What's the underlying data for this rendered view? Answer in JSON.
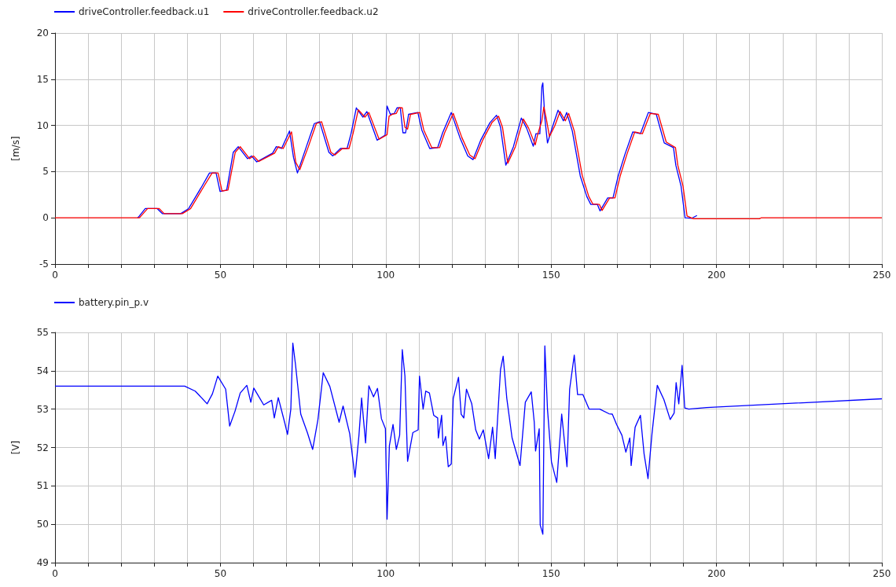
{
  "chart_data": [
    {
      "type": "line",
      "ylabel": "[m/s]",
      "xlim": [
        0,
        250
      ],
      "ylim": [
        -5,
        20
      ],
      "xticks": [
        0,
        {
          "value": 10,
          "label": null
        },
        {
          "value": 20,
          "label": null
        },
        {
          "value": 30,
          "label": null
        },
        {
          "value": 40,
          "label": null
        },
        50,
        {
          "value": 60,
          "label": null
        },
        {
          "value": 70,
          "label": null
        },
        {
          "value": 80,
          "label": null
        },
        {
          "value": 90,
          "label": null
        },
        100,
        {
          "value": 110,
          "label": null
        },
        {
          "value": 120,
          "label": null
        },
        {
          "value": 130,
          "label": null
        },
        {
          "value": 140,
          "label": null
        },
        150,
        {
          "value": 160,
          "label": null
        },
        {
          "value": 170,
          "label": null
        },
        {
          "value": 180,
          "label": null
        },
        {
          "value": 190,
          "label": null
        },
        200,
        {
          "value": 210,
          "label": null
        },
        {
          "value": 220,
          "label": null
        },
        {
          "value": 230,
          "label": null
        },
        {
          "value": 240,
          "label": null
        },
        250
      ],
      "yticks": [
        -5,
        0,
        5,
        10,
        15,
        20
      ],
      "grid": true,
      "legend": "top left",
      "marker": "none",
      "line_style": "solid",
      "series": [
        {
          "name": "driveController.feedback.u1",
          "color": "#0000ff",
          "x": [
            25,
            25.5,
            27.3,
            30.9,
            32.5,
            38,
            40.4,
            44.4,
            46.7,
            48.7,
            49.9,
            51.9,
            53.9,
            55.4,
            58.2,
            59.4,
            61,
            65.8,
            66.9,
            68.5,
            70.9,
            72.1,
            73.3,
            76,
            78.4,
            80,
            82.8,
            84,
            86.3,
            88.3,
            89.5,
            91.1,
            93.1,
            94.3,
            97.4,
            99.8,
            100.4,
            101.4,
            102.6,
            103.4,
            104.4,
            105.2,
            106,
            106.9,
            109.7,
            110.9,
            113.3,
            115.7,
            117.2,
            119.8,
            122.4,
            124.8,
            126.4,
            128.7,
            131.5,
            133.5,
            134.7,
            136.3,
            138.6,
            141,
            142.6,
            144.6,
            145.4,
            146.6,
            147.2,
            147.5,
            148.1,
            148.9,
            150.5,
            152.1,
            153.7,
            154.7,
            156.4,
            158.8,
            160.8,
            162,
            164,
            164.8,
            167.1,
            168.7,
            170.3,
            172.3,
            174.7,
            177,
            179.4,
            181.8,
            184.2,
            187,
            187.7,
            189.3,
            190.5,
            192.5,
            194.1
          ],
          "values": [
            0,
            0.2,
            1.0,
            1.0,
            0.45,
            0.45,
            1.0,
            3.4,
            4.85,
            4.85,
            2.85,
            3.0,
            7.1,
            7.7,
            6.4,
            6.7,
            6.05,
            7.0,
            7.7,
            7.5,
            9.4,
            6.55,
            4.85,
            7.7,
            10.2,
            10.4,
            7.1,
            6.7,
            7.5,
            7.5,
            9.1,
            11.9,
            10.9,
            11.5,
            8.4,
            8.95,
            12.1,
            11.2,
            11.3,
            11.9,
            11.9,
            9.2,
            9.2,
            11.2,
            11.4,
            9.5,
            7.5,
            7.6,
            9.2,
            11.4,
            8.7,
            6.7,
            6.3,
            8.4,
            10.3,
            11.1,
            9.8,
            5.7,
            7.7,
            10.8,
            9.7,
            7.75,
            9.1,
            9.1,
            14.2,
            14.6,
            10.8,
            8.1,
            9.95,
            11.65,
            10.5,
            11.4,
            9.4,
            4.55,
            2.3,
            1.45,
            1.45,
            0.75,
            2.15,
            2.15,
            4.55,
            6.85,
            9.3,
            9.1,
            11.4,
            11.2,
            8.1,
            7.6,
            5.7,
            3.4,
            0,
            -0.05,
            0.25
          ]
        },
        {
          "name": "driveController.feedback.u2",
          "color": "#ff0000",
          "x": [
            0,
            25.5,
            26,
            28,
            31.5,
            33,
            38.5,
            41,
            45,
            47.5,
            49.3,
            50.5,
            52.3,
            54.5,
            56,
            58.8,
            60,
            61.6,
            66.4,
            67.5,
            69,
            71.5,
            72.8,
            74,
            76.6,
            79,
            80.6,
            83.4,
            84.6,
            86.9,
            88.9,
            90.1,
            91.7,
            93.7,
            94.9,
            98,
            100.4,
            101,
            102,
            103.2,
            104,
            105,
            105.8,
            106.6,
            107.5,
            110.3,
            111.5,
            113.9,
            116.3,
            117.8,
            120.4,
            123,
            125.4,
            127,
            129.3,
            132.1,
            134.1,
            135.3,
            136.9,
            139.2,
            141.6,
            143.2,
            145.2,
            146,
            147.2,
            147.8,
            148.5,
            149.5,
            151.1,
            152.7,
            154.3,
            155.3,
            157,
            159.4,
            161.4,
            162.6,
            164.6,
            165.4,
            167.7,
            169.3,
            170.9,
            172.9,
            175.3,
            177.6,
            180,
            182.4,
            184.8,
            187.6,
            188.3,
            189.9,
            191.1,
            193,
            213,
            213.5,
            250
          ],
          "values": [
            0,
            0,
            0.2,
            1.0,
            1.0,
            0.45,
            0.45,
            1.0,
            3.4,
            4.85,
            4.85,
            2.9,
            3.0,
            7.1,
            7.7,
            6.4,
            6.7,
            6.1,
            7.0,
            7.7,
            7.5,
            9.3,
            6.0,
            5.2,
            7.7,
            10.2,
            10.4,
            7.1,
            6.8,
            7.5,
            7.5,
            9.1,
            11.7,
            10.9,
            11.4,
            8.5,
            9.0,
            11.0,
            11.2,
            11.3,
            11.9,
            11.9,
            9.8,
            9.6,
            11.2,
            11.4,
            9.5,
            7.6,
            7.6,
            9.2,
            11.3,
            8.7,
            6.8,
            6.4,
            8.4,
            10.3,
            11.0,
            9.8,
            5.9,
            7.7,
            10.7,
            9.7,
            7.9,
            9.1,
            10.5,
            12.0,
            10.8,
            8.8,
            9.95,
            11.5,
            10.5,
            11.3,
            9.4,
            4.6,
            2.3,
            1.5,
            1.45,
            0.8,
            2.15,
            2.15,
            4.55,
            6.85,
            9.3,
            9.1,
            11.3,
            11.2,
            8.2,
            7.6,
            5.7,
            3.4,
            0.2,
            -0.1,
            -0.1,
            0,
            0
          ]
        }
      ]
    },
    {
      "type": "line",
      "ylabel": "[V]",
      "xlim": [
        0,
        250
      ],
      "ylim": [
        49,
        55
      ],
      "xticks": [
        0,
        {
          "value": 10,
          "label": null
        },
        {
          "value": 20,
          "label": null
        },
        {
          "value": 30,
          "label": null
        },
        {
          "value": 40,
          "label": null
        },
        50,
        {
          "value": 60,
          "label": null
        },
        {
          "value": 70,
          "label": null
        },
        {
          "value": 80,
          "label": null
        },
        {
          "value": 90,
          "label": null
        },
        100,
        {
          "value": 110,
          "label": null
        },
        {
          "value": 120,
          "label": null
        },
        {
          "value": 130,
          "label": null
        },
        {
          "value": 140,
          "label": null
        },
        150,
        {
          "value": 160,
          "label": null
        },
        {
          "value": 170,
          "label": null
        },
        {
          "value": 180,
          "label": null
        },
        {
          "value": 190,
          "label": null
        },
        200,
        {
          "value": 210,
          "label": null
        },
        {
          "value": 220,
          "label": null
        },
        {
          "value": 230,
          "label": null
        },
        {
          "value": 240,
          "label": null
        },
        250
      ],
      "yticks": [
        49,
        50,
        51,
        52,
        53,
        54,
        55
      ],
      "grid": true,
      "legend": "top left",
      "marker": "none",
      "line_style": "solid",
      "series": [
        {
          "name": "battery.pin_p.v",
          "color": "#0000ff",
          "x": [
            0,
            39.2,
            42.4,
            46,
            47.6,
            49.2,
            51.6,
            52.8,
            54.4,
            56,
            58,
            59.2,
            60.1,
            63.1,
            65.5,
            66.3,
            67.5,
            69.5,
            70.3,
            71.3,
            71.9,
            72.7,
            74.3,
            76.3,
            77.9,
            79.5,
            81.1,
            83.1,
            85.9,
            87.1,
            89.1,
            90.7,
            91.9,
            92.7,
            93.9,
            94.9,
            96.3,
            97.5,
            98.7,
            99.9,
            100.4,
            101.1,
            102.2,
            103.2,
            104.2,
            105,
            105.8,
            106.6,
            108.2,
            109.8,
            110.2,
            111.3,
            112.1,
            113.2,
            114.5,
            115.7,
            115.9,
            116.9,
            117.3,
            118.1,
            118.9,
            119.8,
            120.4,
            122,
            122.8,
            123.6,
            124.4,
            126,
            127.2,
            128.3,
            129.5,
            131.1,
            132.3,
            133.1,
            134.7,
            135.5,
            136.6,
            138.2,
            140.6,
            142.2,
            144,
            144.9,
            145.3,
            146.4,
            146.7,
            147.5,
            148.1,
            148.9,
            150.1,
            151.7,
            153.2,
            154.4,
            154.8,
            155.6,
            157,
            158,
            159.6,
            161.5,
            164.7,
            167.5,
            168.5,
            169.8,
            171.4,
            172.6,
            173.8,
            174.2,
            175.4,
            177,
            178.1,
            179.3,
            180.5,
            182.1,
            184.1,
            186,
            187.2,
            187.8,
            188.6,
            189.6,
            190.4,
            191.6,
            197,
            250
          ],
          "values": [
            53.6,
            53.6,
            53.47,
            53.14,
            53.4,
            53.86,
            53.52,
            52.56,
            52.94,
            53.42,
            53.62,
            53.18,
            53.55,
            53.11,
            53.23,
            52.77,
            53.3,
            52.63,
            52.34,
            53.0,
            54.72,
            54.17,
            52.87,
            52.39,
            51.95,
            52.73,
            53.95,
            53.59,
            52.66,
            53.08,
            52.36,
            51.23,
            52.32,
            53.29,
            52.12,
            53.61,
            53.32,
            53.54,
            52.75,
            52.49,
            50.13,
            52.05,
            52.6,
            51.95,
            52.32,
            54.55,
            53.86,
            51.64,
            52.39,
            52.46,
            53.86,
            53.0,
            53.47,
            53.42,
            52.84,
            52.77,
            52.25,
            52.84,
            52.05,
            52.29,
            51.5,
            51.57,
            53.28,
            53.83,
            52.87,
            52.77,
            53.52,
            53.14,
            52.46,
            52.22,
            52.46,
            51.71,
            52.53,
            51.71,
            54.03,
            54.38,
            53.28,
            52.25,
            51.53,
            53.18,
            53.45,
            52.66,
            51.91,
            52.49,
            49.98,
            49.74,
            54.65,
            53.0,
            51.63,
            51.09,
            52.87,
            51.84,
            51.5,
            53.52,
            54.41,
            53.38,
            53.38,
            53.0,
            53.0,
            52.88,
            52.87,
            52.6,
            52.32,
            51.88,
            52.25,
            51.53,
            52.53,
            52.84,
            51.84,
            51.19,
            52.36,
            53.62,
            53.25,
            52.73,
            52.9,
            53.69,
            53.14,
            54.14,
            53.03,
            53.0,
            53.04,
            53.27
          ]
        }
      ]
    }
  ]
}
